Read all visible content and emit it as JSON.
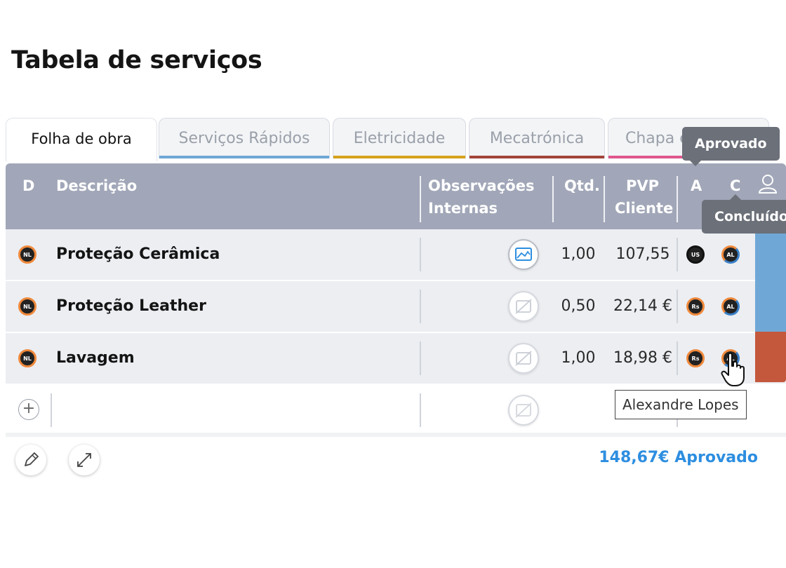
{
  "page": {
    "title": "Tabela de serviços"
  },
  "tabs": [
    {
      "label": "Folha de obra",
      "active": true,
      "color": "#ffffff"
    },
    {
      "label": "Serviços Rápidos",
      "color": "#6fa8d6"
    },
    {
      "label": "Eletricidade",
      "color": "#d6a21d"
    },
    {
      "label": "Mecatrónica",
      "color": "#a3453a"
    },
    {
      "label": "Chapa e",
      "color": "#e0578f"
    }
  ],
  "table": {
    "headers": {
      "d": "D",
      "descricao": "Descrição",
      "obs_line1": "Observações",
      "obs_line2": "Internas",
      "qtd": "Qtd.",
      "pvp_line1": "PVP",
      "pvp_line2": "Cliente",
      "a": "A",
      "c": "C"
    },
    "rows": [
      {
        "d_badge": "NL",
        "descricao": "Proteção Cerâmica",
        "qtd": "1,00",
        "pvp": "107,55",
        "a_badge": "US",
        "c_badge": "AL",
        "strip_color": "#6fa8d6"
      },
      {
        "d_badge": "NL",
        "descricao": "Proteção Leather",
        "qtd": "0,50",
        "pvp": "22,14 €",
        "a_badge": "Rs",
        "c_badge": "AL",
        "strip_color": "#6fa8d6"
      },
      {
        "d_badge": "NL",
        "descricao": "Lavagem",
        "qtd": "1,00",
        "pvp": "18,98 €",
        "a_badge": "Rs",
        "c_badge": "AL",
        "strip_color": "#c4583c"
      }
    ]
  },
  "footer": {
    "total": "148,67€ Aprovado"
  },
  "tooltips": {
    "aprovado": "Aprovado",
    "concluido": "Concluído",
    "user": "Alexandre Lopes"
  }
}
